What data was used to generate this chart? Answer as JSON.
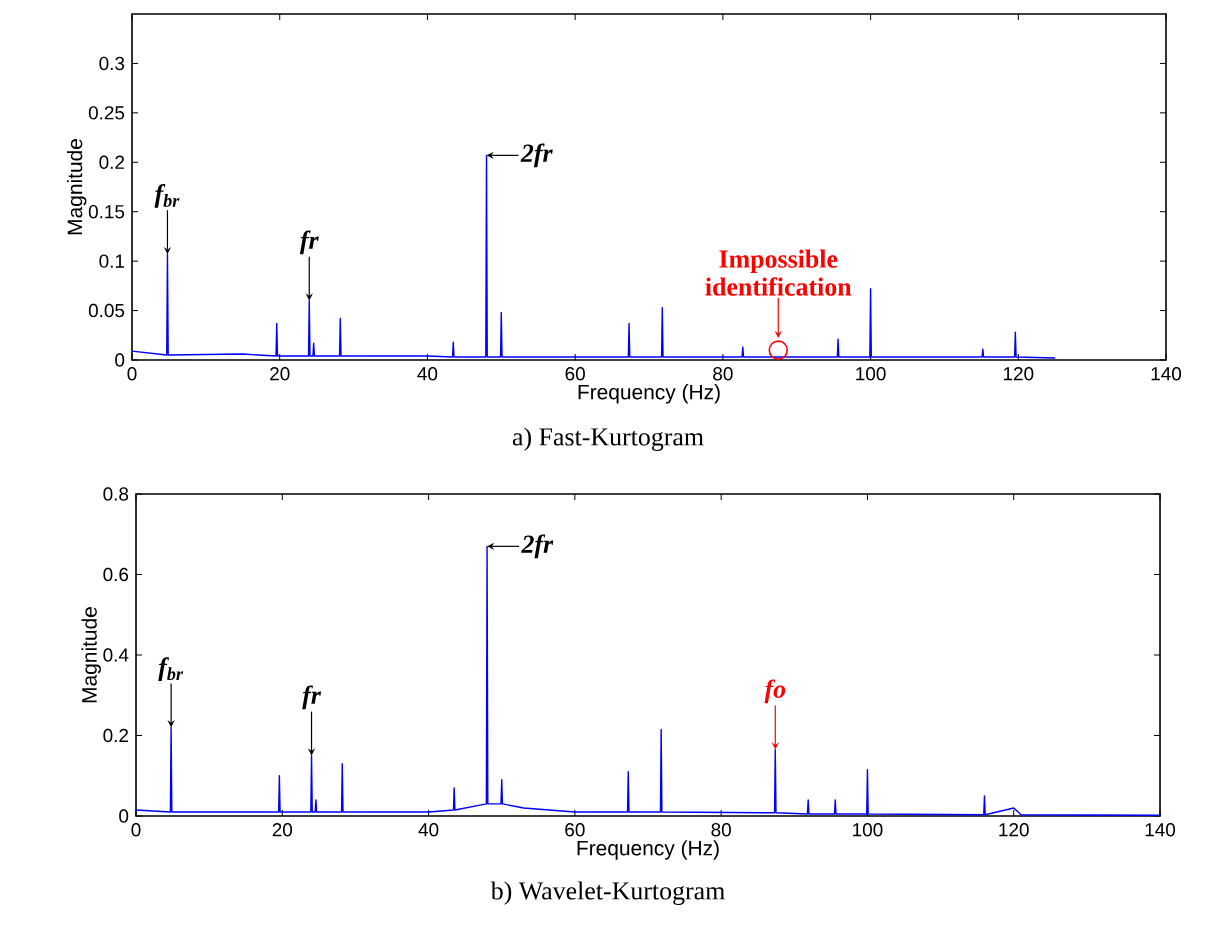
{
  "chart_data": [
    {
      "type": "line",
      "title": "a) Fast-Kurtogram",
      "xlabel": "Frequency (Hz)",
      "ylabel": "Magnitude",
      "series": [
        {
          "color": "#0000ff",
          "x": [
            0,
            4.7,
            4.8,
            4.9,
            15,
            19.5,
            19.6,
            19.7,
            23.9,
            24,
            24.1,
            24.5,
            24.6,
            24.7,
            28.1,
            28.2,
            28.3,
            40,
            43.4,
            43.5,
            43.6,
            47.9,
            48,
            48.1,
            49.9,
            50,
            50.1,
            67.2,
            67.3,
            67.4,
            71.7,
            71.8,
            71.9,
            82.6,
            82.7,
            82.8,
            95.5,
            95.6,
            95.7,
            99.9,
            100,
            100.1,
            115.1,
            115.2,
            115.3,
            119.5,
            119.6,
            119.7,
            125
          ],
          "values": [
            0.009,
            0.005,
            0.107,
            0.005,
            0.006,
            0.004,
            0.037,
            0.004,
            0.004,
            0.06,
            0.004,
            0.004,
            0.017,
            0.004,
            0.004,
            0.042,
            0.004,
            0.004,
            0.003,
            0.018,
            0.003,
            0.003,
            0.207,
            0.003,
            0.003,
            0.048,
            0.003,
            0.003,
            0.037,
            0.003,
            0.003,
            0.053,
            0.003,
            0.003,
            0.013,
            0.003,
            0.003,
            0.021,
            0.003,
            0.003,
            0.072,
            0.003,
            0.003,
            0.011,
            0.003,
            0.003,
            0.028,
            0.003,
            0.002
          ]
        }
      ],
      "xlim": [
        0,
        140
      ],
      "xticks": [
        0,
        20,
        40,
        60,
        80,
        100,
        120,
        140
      ],
      "ylim": [
        0,
        0.35
      ],
      "yticks": [
        0,
        0.05,
        0.1,
        0.15,
        0.2,
        0.25,
        0.3
      ],
      "marker": "none",
      "line_style": "solid",
      "grid": false,
      "annotations": [
        {
          "text": "f$_{br}$",
          "x": 4.8,
          "y": 0.107
        },
        {
          "text": "fr",
          "x": 24,
          "y": 0.06
        },
        {
          "text": "2fr",
          "x": 48,
          "y": 0.207
        },
        {
          "text": "Impossible identification",
          "x": 87.5,
          "y": 0.01
        }
      ]
    },
    {
      "type": "line",
      "title": "b) Wavelet-Kurtogram",
      "xlabel": "Frequency (Hz)",
      "ylabel": "Magnitude",
      "series": [
        {
          "color": "#0000ff",
          "x": [
            0,
            4.7,
            4.8,
            4.9,
            19.5,
            19.6,
            19.7,
            23.9,
            24,
            24.1,
            24.5,
            24.6,
            24.7,
            28.1,
            28.2,
            28.3,
            40,
            43.4,
            43.5,
            43.6,
            47.9,
            48,
            48.1,
            49.9,
            50,
            50.1,
            53,
            60,
            67.2,
            67.3,
            67.4,
            71.7,
            71.8,
            71.9,
            87.3,
            87.4,
            87.5,
            91.8,
            91.9,
            92,
            95.5,
            95.6,
            95.7,
            99.9,
            100,
            100.1,
            115.9,
            116,
            116.1,
            120,
            121,
            140
          ],
          "values": [
            0.015,
            0.01,
            0.22,
            0.01,
            0.01,
            0.1,
            0.01,
            0.01,
            0.15,
            0.01,
            0.01,
            0.04,
            0.01,
            0.01,
            0.13,
            0.01,
            0.01,
            0.015,
            0.07,
            0.015,
            0.03,
            0.67,
            0.03,
            0.03,
            0.09,
            0.03,
            0.02,
            0.01,
            0.01,
            0.11,
            0.01,
            0.01,
            0.215,
            0.01,
            0.008,
            0.165,
            0.008,
            0.005,
            0.04,
            0.005,
            0.005,
            0.04,
            0.005,
            0.005,
            0.115,
            0.005,
            0.003,
            0.05,
            0.003,
            0.02,
            0.003,
            0.002
          ]
        }
      ],
      "xlim": [
        0,
        140
      ],
      "xticks": [
        0,
        20,
        40,
        60,
        80,
        100,
        120,
        140
      ],
      "ylim": [
        0,
        0.8
      ],
      "yticks": [
        0,
        0.2,
        0.4,
        0.6,
        0.8
      ],
      "marker": "none",
      "line_style": "solid",
      "grid": false,
      "annotations": [
        {
          "text": "f$_{br}$",
          "x": 4.8,
          "y": 0.22
        },
        {
          "text": "fr",
          "x": 24,
          "y": 0.15
        },
        {
          "text": "2fr",
          "x": 48,
          "y": 0.67
        },
        {
          "text": "fo",
          "x": 87.4,
          "y": 0.165
        }
      ]
    }
  ]
}
